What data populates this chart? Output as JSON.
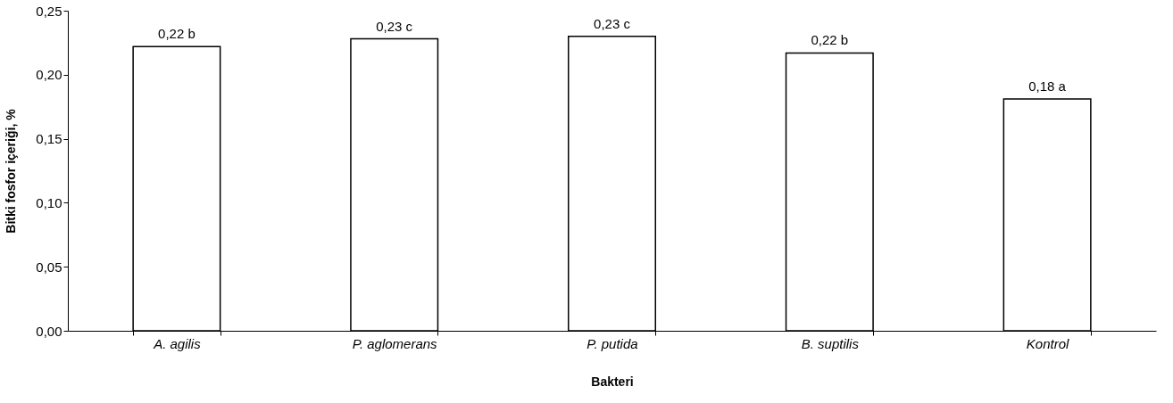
{
  "chart_data": {
    "type": "bar",
    "xlabel": "Bakteri",
    "ylabel": "Bitki fosfor içeriği, %",
    "categories": [
      "A. agilis",
      "P. aglomerans",
      "P. putida",
      "B. suptilis",
      "Kontrol"
    ],
    "values": [
      0.222,
      0.228,
      0.23,
      0.217,
      0.181
    ],
    "value_labels": [
      "0,22 b",
      "0,23 c",
      "0,23 c",
      "0,22 b",
      "0,18 a"
    ],
    "color": "#ffffff",
    "ylim": [
      0,
      0.25
    ],
    "yticks": [
      {
        "value": 0,
        "label": "0,00"
      },
      {
        "value": 0.05,
        "label": "0,05"
      },
      {
        "value": 0.1,
        "label": "0,10"
      },
      {
        "value": 0.15,
        "label": "0,15"
      },
      {
        "value": 0.2,
        "label": "0,20"
      },
      {
        "value": 0.25,
        "label": "0,25"
      }
    ],
    "grid": false
  }
}
